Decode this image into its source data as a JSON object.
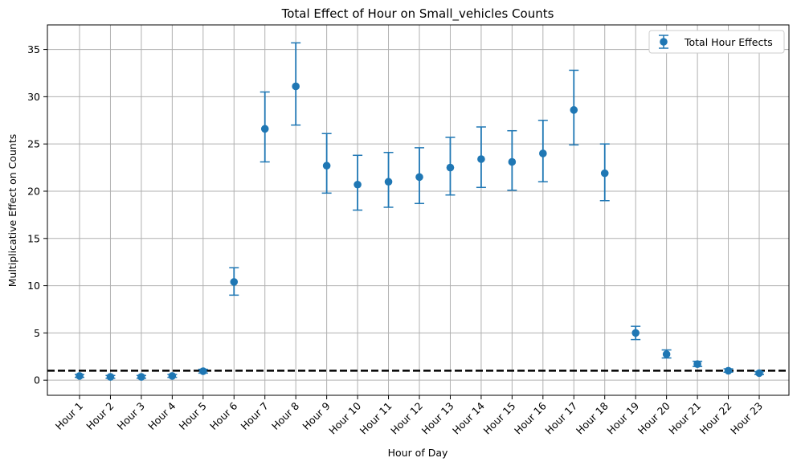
{
  "chart_data": {
    "type": "scatter",
    "title": "Total Effect of Hour on Small_vehicles Counts",
    "xlabel": "Hour of Day",
    "ylabel": "Multiplicative Effect on Counts",
    "categories": [
      "Hour 1",
      "Hour 2",
      "Hour 3",
      "Hour 4",
      "Hour 5",
      "Hour 6",
      "Hour 7",
      "Hour 8",
      "Hour 9",
      "Hour 10",
      "Hour 11",
      "Hour 12",
      "Hour 13",
      "Hour 14",
      "Hour 15",
      "Hour 16",
      "Hour 17",
      "Hour 18",
      "Hour 19",
      "Hour 20",
      "Hour 21",
      "Hour 22",
      "Hour 23"
    ],
    "ylim": [
      -1.6,
      37.6
    ],
    "yticks": [
      0,
      5,
      10,
      15,
      20,
      25,
      30,
      35
    ],
    "grid": true,
    "legend_position": "top-right",
    "reference_line": 1.0,
    "series": [
      {
        "name": "Total Hour Effects",
        "color": "#1f77b4",
        "values": [
          0.45,
          0.35,
          0.35,
          0.45,
          0.95,
          10.4,
          26.6,
          31.1,
          22.7,
          20.7,
          21.0,
          21.5,
          22.5,
          23.4,
          23.1,
          24.0,
          28.6,
          21.9,
          5.0,
          2.75,
          1.7,
          1.0,
          0.75
        ],
        "lower": [
          0.3,
          0.2,
          0.2,
          0.3,
          0.75,
          9.0,
          23.1,
          27.0,
          19.8,
          18.0,
          18.3,
          18.7,
          19.6,
          20.4,
          20.1,
          21.0,
          24.9,
          19.0,
          4.3,
          2.35,
          1.45,
          0.85,
          0.6
        ],
        "upper": [
          0.6,
          0.5,
          0.5,
          0.6,
          1.15,
          11.9,
          30.5,
          35.7,
          26.1,
          23.8,
          24.1,
          24.6,
          25.7,
          26.8,
          26.4,
          27.5,
          32.8,
          25.0,
          5.7,
          3.2,
          2.0,
          1.2,
          0.9
        ]
      }
    ]
  }
}
